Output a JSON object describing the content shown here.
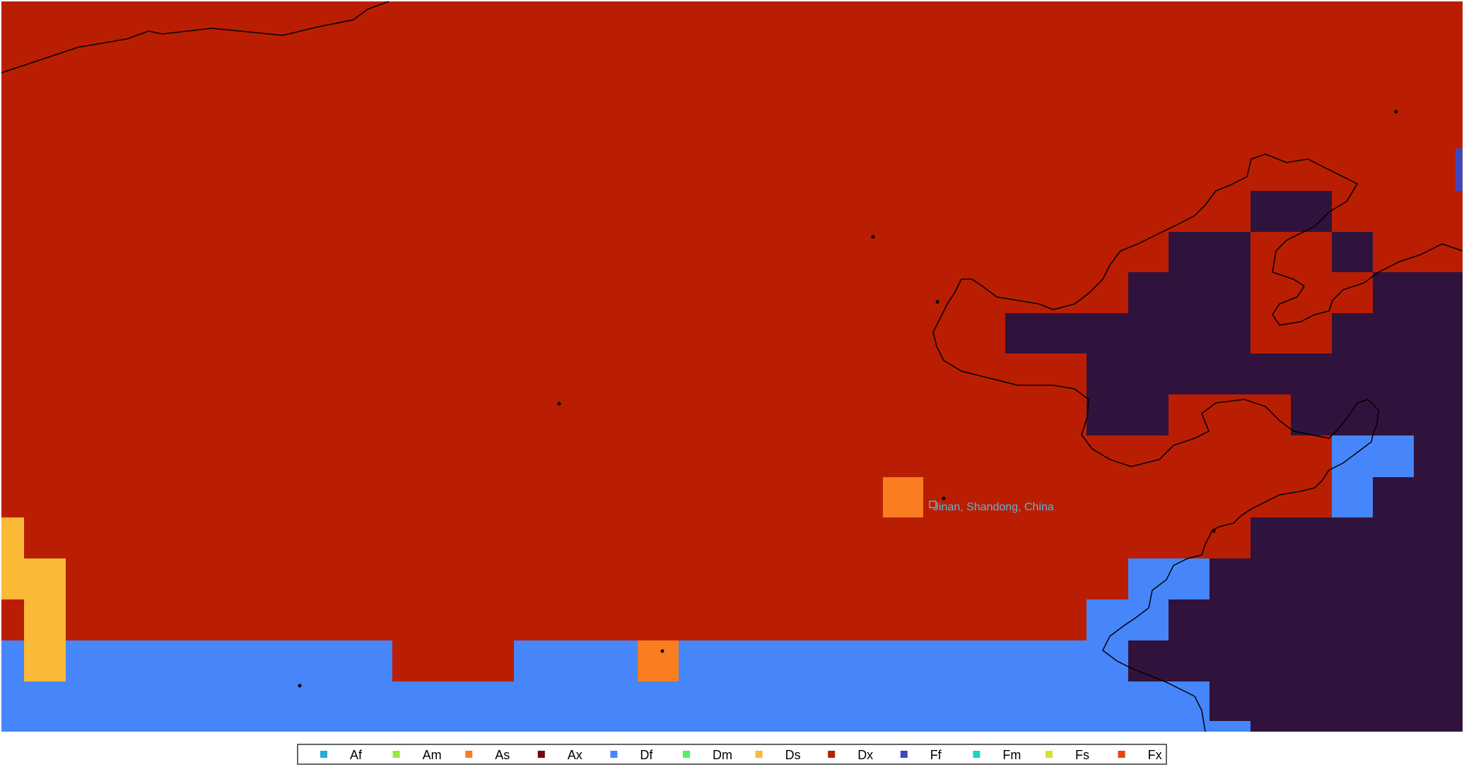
{
  "map": {
    "type": "climate classification grid",
    "background_class": "Dx",
    "cells": [
      {
        "class": "Ds",
        "col": 0,
        "row": 17
      },
      {
        "class": "Ds",
        "col": 0,
        "row": 18
      },
      {
        "class": "Ds",
        "col": 0,
        "row": 19
      },
      {
        "class": "Ds",
        "col": 1,
        "row": 18
      },
      {
        "class": "Ds",
        "col": 1,
        "row": 19
      },
      {
        "class": "Ds",
        "col": 1,
        "row": 20
      },
      {
        "class": "Ds",
        "col": 1,
        "row": 21
      },
      {
        "class": "Df",
        "region": "southern band"
      },
      {
        "class": "Dx",
        "region": "southern notch"
      },
      {
        "class": "As",
        "region": "southern cell"
      },
      {
        "class": "As",
        "region": "Jinan cell"
      },
      {
        "class": "Df",
        "region": "east coast"
      },
      {
        "class": "Ff",
        "region": "far east edge"
      },
      {
        "class": "Dx",
        "region": "eastern interior"
      }
    ],
    "dark_class_color": "#30133d",
    "coastline_color": "#000000",
    "location_marker": {
      "label": "Jinan, Shandong, China",
      "color": "#5ab4d8"
    }
  },
  "legend": {
    "items": [
      {
        "label": "Af",
        "color": "#28aadf"
      },
      {
        "label": "Am",
        "color": "#9ce83a"
      },
      {
        "label": "As",
        "color": "#fa7d22"
      },
      {
        "label": "Ax",
        "color": "#7a0403"
      },
      {
        "label": "Df",
        "color": "#4686fa"
      },
      {
        "label": "Dm",
        "color": "#52f05a"
      },
      {
        "label": "Ds",
        "color": "#fbb938"
      },
      {
        "label": "Dx",
        "color": "#ba1e02"
      },
      {
        "label": "Ff",
        "color": "#4147bb"
      },
      {
        "label": "Fm",
        "color": "#1ad6bd"
      },
      {
        "label": "Fs",
        "color": "#d4e035"
      },
      {
        "label": "Fx",
        "color": "#e4460a"
      }
    ]
  }
}
